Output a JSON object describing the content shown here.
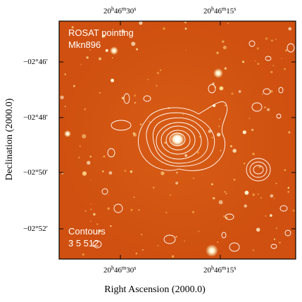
{
  "figure": {
    "overlay_title": [
      "ROSAT pointing",
      "Mkn896"
    ],
    "overlay_contours": [
      "Contours",
      "3 5 512"
    ],
    "x_axis_title": "Right Ascension (2000.0)",
    "y_axis_title": "Declination (2000.0)",
    "ra_ticks": [
      {
        "h": "20",
        "m": "46",
        "s": "30"
      },
      {
        "h": "20",
        "m": "46",
        "s": "15"
      }
    ],
    "dec_ticks": [
      "−02°46′",
      "−02°48′",
      "−02°50′",
      "−02°52′"
    ],
    "colors": {
      "image_base": "#cf5010",
      "source": "#fff6d0",
      "contour": "#ffffff",
      "frame": "#000000"
    }
  }
}
